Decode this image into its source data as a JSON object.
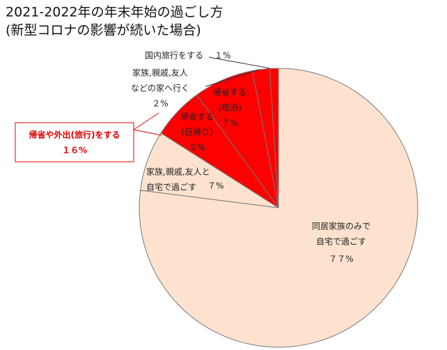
{
  "chart_data": {
    "type": "pie",
    "title": [
      "2021-2022年の年末年始の過ごし方",
      "(新型コロナの影響が続いた場合)"
    ],
    "labels": [
      [
        "同居家族のみで",
        "自宅で過ごす"
      ],
      [
        "家族,親戚,友人と",
        "自宅で過ごす"
      ],
      [
        "帰省する",
        "(日帰り)"
      ],
      [
        "帰省する",
        "(宿泊)"
      ],
      [
        "家族,親戚,友人",
        "などの家へ行く"
      ],
      [
        "国内旅行をする"
      ]
    ],
    "values": [
      77,
      7,
      6,
      7,
      2,
      1
    ],
    "value_labels": [
      "７７%",
      "７%",
      "６%",
      "７%",
      "２%",
      "１%"
    ],
    "colors": [
      "#fde3cf",
      "#fde3cf",
      "#ff0000",
      "#ff0000",
      "#ff0000",
      "#ff0000"
    ],
    "annotation": {
      "text": "帰省や外出(旅行)をする",
      "value": 16,
      "value_label": "１６%"
    }
  }
}
